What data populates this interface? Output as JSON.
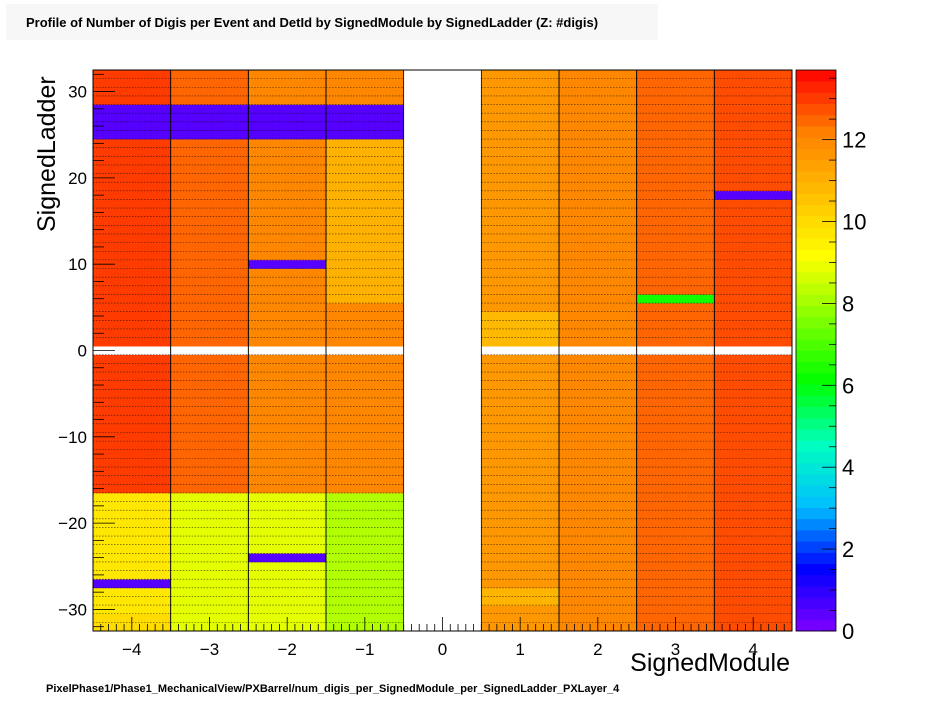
{
  "chart_data": {
    "type": "heatmap",
    "title": "Profile of Number of Digis per Event and DetId by SignedModule by SignedLadder (Z: #digis)",
    "xlabel": "SignedModule",
    "ylabel": "SignedLadder",
    "xlim": [
      -4.5,
      4.5
    ],
    "ylim": [
      -32.5,
      32.5
    ],
    "zlim": [
      0,
      13.7
    ],
    "x_ticks": [
      "−4",
      "−3",
      "−2",
      "−1",
      "0",
      "1",
      "2",
      "3",
      "4"
    ],
    "y_ticks": [
      "−30",
      "−20",
      "−10",
      "0",
      "10",
      "20",
      "30"
    ],
    "z_ticks": [
      "0",
      "2",
      "4",
      "6",
      "8",
      "10",
      "12"
    ],
    "grid": true,
    "x_values": [
      -4,
      -3,
      -2,
      -1,
      1,
      2,
      3,
      4
    ],
    "y_values": [
      -32,
      -31,
      -30,
      -29,
      -28,
      -27,
      -26,
      -25,
      -24,
      -23,
      -22,
      -21,
      -20,
      -19,
      -18,
      -17,
      -16,
      -15,
      -14,
      -13,
      -12,
      -11,
      -10,
      -9,
      -8,
      -7,
      -6,
      -5,
      -4,
      -3,
      -2,
      -1,
      1,
      2,
      3,
      4,
      5,
      6,
      7,
      8,
      9,
      10,
      11,
      12,
      13,
      14,
      15,
      16,
      17,
      18,
      19,
      20,
      21,
      22,
      23,
      24,
      25,
      26,
      27,
      28,
      29,
      30,
      31,
      32
    ],
    "columns": [
      {
        "module": -4,
        "values": [
          10.0,
          10.0,
          9.7,
          9.7,
          9.7,
          0.5,
          9.7,
          9.7,
          9.7,
          9.7,
          9.7,
          9.7,
          9.7,
          9.7,
          9.7,
          9.7,
          13.0,
          13.0,
          13.0,
          13.0,
          13.0,
          13.0,
          13.0,
          13.0,
          13.0,
          13.0,
          13.0,
          13.0,
          13.0,
          13.0,
          13.0,
          13.0,
          13.0,
          13.0,
          13.0,
          13.0,
          13.0,
          13.0,
          13.0,
          13.0,
          13.0,
          13.0,
          13.0,
          13.0,
          13.0,
          13.0,
          13.0,
          13.0,
          13.0,
          13.0,
          13.0,
          13.0,
          13.0,
          13.0,
          13.0,
          13.0,
          0.5,
          0.5,
          0.5,
          0.5,
          13.0,
          13.0,
          13.0,
          13.0
        ]
      },
      {
        "module": -3,
        "values": [
          8.8,
          8.8,
          8.8,
          8.8,
          8.8,
          8.8,
          8.8,
          8.8,
          8.8,
          8.8,
          8.8,
          8.8,
          8.8,
          8.8,
          8.8,
          8.8,
          12.5,
          12.5,
          12.5,
          12.5,
          12.5,
          12.5,
          12.5,
          12.5,
          12.5,
          12.5,
          12.5,
          12.5,
          12.5,
          12.5,
          12.5,
          12.5,
          12.5,
          12.5,
          12.5,
          12.5,
          12.5,
          12.5,
          12.5,
          12.5,
          12.5,
          12.5,
          12.5,
          12.5,
          12.5,
          12.5,
          12.5,
          12.5,
          12.5,
          12.5,
          12.5,
          12.5,
          12.5,
          12.5,
          12.5,
          12.5,
          0.5,
          0.5,
          0.5,
          0.5,
          12.5,
          12.5,
          12.5,
          12.5
        ]
      },
      {
        "module": -2,
        "values": [
          8.8,
          8.8,
          8.8,
          8.8,
          8.8,
          8.8,
          8.8,
          8.8,
          0.5,
          8.8,
          8.8,
          8.8,
          8.8,
          8.8,
          8.8,
          8.8,
          12.0,
          12.0,
          12.0,
          12.0,
          12.0,
          12.0,
          12.0,
          12.0,
          12.0,
          12.0,
          12.0,
          12.0,
          12.0,
          12.0,
          12.0,
          12.0,
          12.0,
          12.0,
          12.0,
          12.0,
          12.0,
          12.0,
          12.0,
          12.0,
          12.0,
          0.5,
          12.0,
          12.0,
          12.0,
          12.0,
          12.0,
          12.0,
          12.0,
          12.0,
          12.0,
          12.0,
          12.0,
          12.0,
          12.0,
          12.0,
          0.5,
          0.5,
          0.5,
          0.5,
          12.0,
          12.0,
          12.0,
          12.0
        ]
      },
      {
        "module": -1,
        "values": [
          8.2,
          8.2,
          8.2,
          8.2,
          8.2,
          8.2,
          8.2,
          8.2,
          8.2,
          8.2,
          8.2,
          8.2,
          8.2,
          8.2,
          8.2,
          8.2,
          12.0,
          12.0,
          12.0,
          12.0,
          12.0,
          12.0,
          12.0,
          12.0,
          12.0,
          12.0,
          12.0,
          12.0,
          12.0,
          12.0,
          12.0,
          12.0,
          12.0,
          12.0,
          12.0,
          12.0,
          12.0,
          11.0,
          11.0,
          11.0,
          11.0,
          11.0,
          11.0,
          11.0,
          11.0,
          11.0,
          11.0,
          11.0,
          11.0,
          11.0,
          11.0,
          11.0,
          11.0,
          11.0,
          11.0,
          11.0,
          0.5,
          0.5,
          0.5,
          0.5,
          12.0,
          12.0,
          12.0,
          12.0
        ]
      },
      {
        "module": 1,
        "values": [
          11.6,
          11.6,
          11.6,
          10.9,
          10.9,
          11.6,
          11.6,
          11.6,
          11.6,
          11.6,
          11.6,
          11.6,
          11.6,
          11.6,
          11.6,
          11.6,
          11.6,
          11.6,
          11.6,
          11.6,
          11.6,
          11.6,
          11.6,
          11.6,
          11.6,
          11.6,
          11.6,
          11.6,
          11.6,
          11.6,
          11.6,
          11.6,
          10.8,
          10.8,
          10.8,
          10.8,
          11.6,
          11.6,
          11.6,
          11.6,
          11.6,
          11.6,
          11.6,
          11.6,
          11.6,
          11.6,
          11.6,
          11.6,
          11.6,
          11.6,
          11.6,
          11.6,
          11.6,
          11.6,
          11.6,
          11.6,
          11.6,
          11.6,
          11.6,
          11.6,
          11.6,
          11.6,
          11.6,
          11.6
        ]
      },
      {
        "module": 2,
        "values": [
          12.0,
          12.0,
          12.0,
          12.0,
          12.0,
          12.0,
          12.0,
          12.0,
          12.0,
          12.0,
          12.0,
          12.0,
          12.0,
          12.0,
          12.0,
          12.0,
          12.0,
          12.0,
          12.0,
          12.0,
          12.0,
          12.0,
          12.0,
          12.0,
          12.0,
          12.0,
          12.0,
          12.0,
          12.0,
          12.0,
          12.0,
          12.0,
          12.0,
          12.0,
          12.0,
          12.0,
          12.0,
          12.0,
          12.0,
          12.0,
          12.0,
          12.0,
          12.0,
          12.0,
          12.0,
          12.0,
          12.0,
          12.0,
          12.0,
          12.0,
          12.0,
          12.0,
          12.0,
          12.0,
          12.0,
          12.0,
          12.0,
          12.0,
          12.0,
          12.0,
          12.0,
          12.0,
          12.0,
          12.0
        ]
      },
      {
        "module": 3,
        "values": [
          12.5,
          12.5,
          12.5,
          12.5,
          12.5,
          12.5,
          12.5,
          12.5,
          12.5,
          12.5,
          12.5,
          12.5,
          12.5,
          12.5,
          12.5,
          12.5,
          12.5,
          12.5,
          12.5,
          12.5,
          12.5,
          12.5,
          12.5,
          12.5,
          12.5,
          12.5,
          12.5,
          12.5,
          12.5,
          12.5,
          12.5,
          12.5,
          12.5,
          12.5,
          12.5,
          12.5,
          12.5,
          6.3,
          12.5,
          12.5,
          12.5,
          12.5,
          12.5,
          12.5,
          12.5,
          12.5,
          12.5,
          12.5,
          12.5,
          12.5,
          12.5,
          12.5,
          12.5,
          12.5,
          12.5,
          12.5,
          12.5,
          12.5,
          12.5,
          12.5,
          12.5,
          12.5,
          12.5,
          12.5
        ]
      },
      {
        "module": 4,
        "values": [
          12.8,
          12.8,
          12.8,
          12.8,
          12.8,
          12.8,
          12.8,
          12.8,
          12.8,
          12.8,
          12.8,
          12.8,
          12.8,
          12.8,
          12.8,
          12.8,
          12.8,
          12.8,
          12.8,
          12.8,
          12.8,
          12.8,
          12.8,
          12.8,
          12.8,
          12.8,
          12.8,
          12.8,
          12.8,
          12.8,
          12.8,
          12.8,
          12.8,
          12.8,
          12.8,
          12.8,
          12.8,
          12.8,
          12.8,
          12.8,
          12.8,
          12.8,
          12.8,
          12.8,
          12.8,
          12.8,
          12.8,
          12.8,
          12.8,
          0.5,
          12.8,
          12.8,
          12.8,
          12.8,
          12.8,
          12.8,
          12.8,
          12.8,
          12.8,
          12.8,
          12.8,
          12.8,
          12.8,
          12.8
        ]
      }
    ]
  },
  "footer_path": "PixelPhase1/Phase1_MechanicalView/PXBarrel/num_digis_per_SignedModule_per_SignedLadder_PXLayer_4",
  "colors": {
    "palette": [
      "#8000ff",
      "#0000ff",
      "#00bfff",
      "#00ffbf",
      "#00ff00",
      "#7fff00",
      "#ffff00",
      "#ffbf00",
      "#ff8000",
      "#ff0000"
    ],
    "frame": "#000000",
    "background": "#ffffff"
  }
}
